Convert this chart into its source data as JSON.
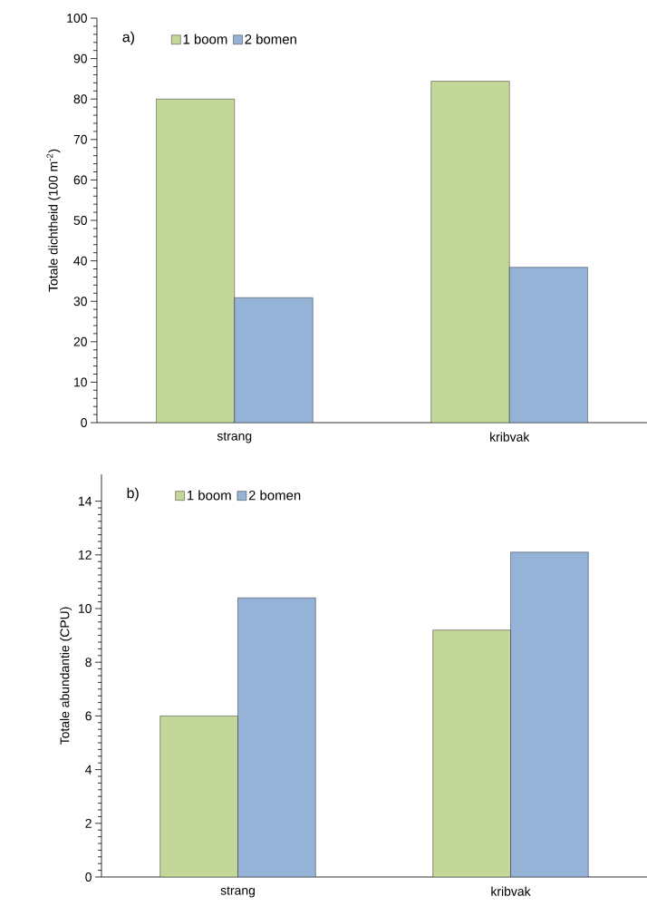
{
  "chart_data": [
    {
      "type": "bar",
      "ylabel": "Totale dichtheid (100 m$^{-2}$)",
      "categories": [
        "strang",
        "kribvak"
      ],
      "series": [
        {
          "name": "1 boom",
          "color": "#c4d79b",
          "values": [
            80,
            84.4
          ]
        },
        {
          "name": "2 bomen",
          "color": "#95b3d7",
          "values": [
            30.9,
            38.4
          ]
        }
      ],
      "ylim": [
        0,
        100
      ],
      "yticks": [
        0,
        10,
        20,
        30,
        40,
        50,
        60,
        70,
        80,
        90,
        100
      ],
      "grid": false,
      "legend": "top left",
      "annotations": [
        "a)"
      ]
    },
    {
      "type": "bar",
      "ylabel": "Totale abundantie (CPU)",
      "categories": [
        "strang",
        "kribvak"
      ],
      "series": [
        {
          "name": "1 boom",
          "color": "#c4d79b",
          "values": [
            6.0,
            9.2
          ]
        },
        {
          "name": "2 bomen",
          "color": "#95b3d7",
          "values": [
            10.4,
            12.1
          ]
        }
      ],
      "ylim": [
        0,
        15
      ],
      "yticks": [
        0,
        2,
        4,
        6,
        8,
        10,
        12,
        14
      ],
      "grid": false,
      "legend": "top left",
      "annotations": [
        "b)"
      ]
    }
  ]
}
